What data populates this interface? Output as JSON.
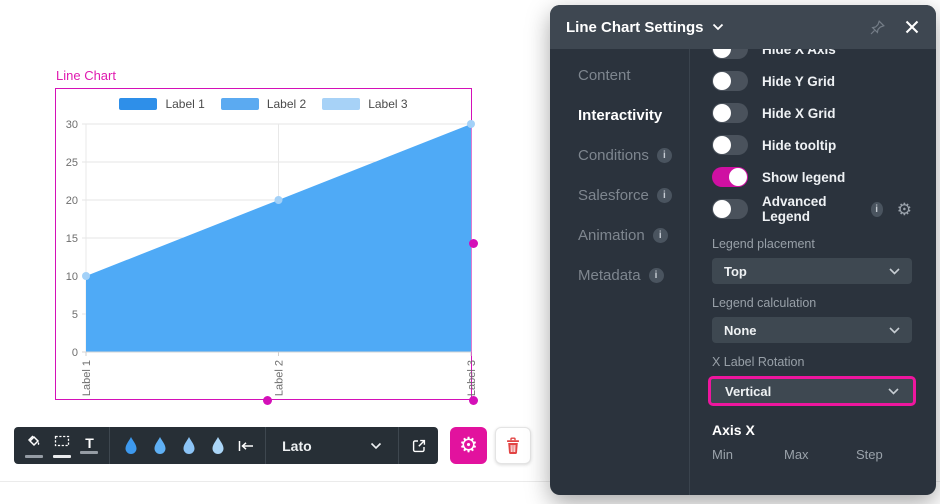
{
  "chart_data": {
    "type": "area",
    "title": "Line Chart",
    "categories": [
      "Label 1",
      "Label 2",
      "Label 3"
    ],
    "values": [
      10,
      20,
      30
    ],
    "ylim": [
      0,
      30
    ],
    "yticks": [
      0,
      5,
      10,
      15,
      20,
      25,
      30
    ],
    "grid": true,
    "legend_position": "top",
    "legend": [
      {
        "label": "Label 1",
        "color": "#2e8fe9"
      },
      {
        "label": "Label 2",
        "color": "#5baaf1"
      },
      {
        "label": "Label 3",
        "color": "#a7d2f7"
      }
    ],
    "area_color": "#4faaf6",
    "marker_color": "#a3d1f8"
  },
  "colors": {
    "accent_magenta": "#d410b8",
    "panel_accent": "#e2129e",
    "toggle_on": "#cf10a2",
    "panel_bg": "#2b333d",
    "panel_header_bg": "#3e4751"
  },
  "toolbar": {
    "font_name": "Lato",
    "droplet_colors": [
      "#3d99ee",
      "#5fb0f4",
      "#8cc4f6",
      "#abd6f8"
    ],
    "icons": [
      "fill-color-icon",
      "border-style-icon",
      "text-style-icon",
      "droplet-icon",
      "align-to-bar-icon",
      "open-external-icon",
      "gear-icon",
      "trash-icon"
    ],
    "text_icon_glyph": "T"
  },
  "panel": {
    "title": "Line Chart Settings",
    "tabs": [
      {
        "label": "Content",
        "active": false,
        "info": false
      },
      {
        "label": "Interactivity",
        "active": true,
        "info": false
      },
      {
        "label": "Conditions",
        "active": false,
        "info": true
      },
      {
        "label": "Salesforce",
        "active": false,
        "info": true
      },
      {
        "label": "Animation",
        "active": false,
        "info": true
      },
      {
        "label": "Metadata",
        "active": false,
        "info": true
      }
    ],
    "toggles": [
      {
        "label": "Hide X Axis",
        "on": false,
        "info": false,
        "gear": false
      },
      {
        "label": "Hide Y Grid",
        "on": false,
        "info": false,
        "gear": false
      },
      {
        "label": "Hide X Grid",
        "on": false,
        "info": false,
        "gear": false
      },
      {
        "label": "Hide tooltip",
        "on": false,
        "info": false,
        "gear": false
      },
      {
        "label": "Show legend",
        "on": true,
        "info": false,
        "gear": false
      },
      {
        "label": "Advanced Legend",
        "on": false,
        "info": true,
        "gear": true
      }
    ],
    "fields": [
      {
        "label": "Legend placement",
        "value": "Top",
        "highlighted": false
      },
      {
        "label": "Legend calculation",
        "value": "None",
        "highlighted": false
      },
      {
        "label": "X Label Rotation",
        "value": "Vertical",
        "highlighted": true
      }
    ],
    "axis_section": {
      "title": "Axis X",
      "columns": [
        "Min",
        "Max",
        "Step"
      ]
    },
    "info_glyph": "i"
  }
}
